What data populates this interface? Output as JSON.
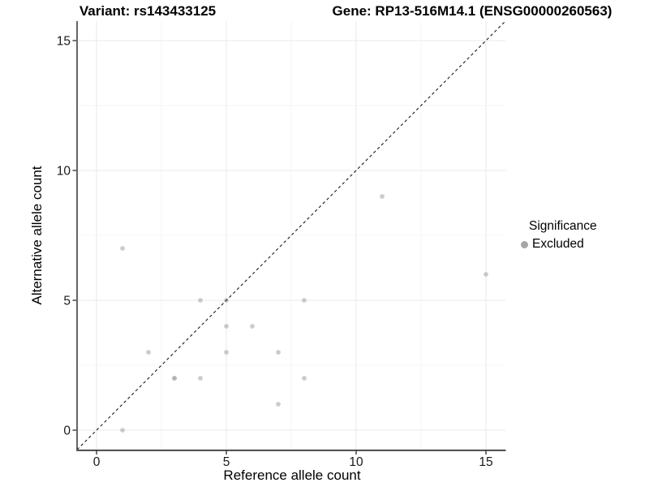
{
  "chart_data": {
    "type": "scatter",
    "title_left": "Variant: rs143433125",
    "title_right": "Gene: RP13-516M14.1 (ENSG00000260563)",
    "xlabel": "Reference allele count",
    "ylabel": "Alternative allele count",
    "x_ticks": [
      0,
      5,
      10,
      15
    ],
    "y_ticks": [
      0,
      5,
      10,
      15
    ],
    "x_minor_ticks": [
      2.5,
      7.5,
      12.5
    ],
    "y_minor_ticks": [
      2.5,
      7.5,
      12.5
    ],
    "xlim": [
      -0.75,
      15.75
    ],
    "ylim": [
      -0.75,
      15.75
    ],
    "grid": "major and minor, light gray on white",
    "identity_line": {
      "style": "dashed",
      "equation": "y = x",
      "color": "#1a1a1a"
    },
    "series": [
      {
        "name": "Excluded",
        "color": "#999999",
        "opacity": 0.5,
        "points": [
          [
            1,
            0
          ],
          [
            1,
            7
          ],
          [
            2,
            3
          ],
          [
            3,
            2
          ],
          [
            3,
            2
          ],
          [
            4,
            2
          ],
          [
            4,
            5
          ],
          [
            5,
            3
          ],
          [
            5,
            4
          ],
          [
            5,
            5
          ],
          [
            6,
            4
          ],
          [
            7,
            1
          ],
          [
            7,
            3
          ],
          [
            8,
            2
          ],
          [
            8,
            5
          ],
          [
            11,
            9
          ],
          [
            15,
            6
          ]
        ]
      }
    ],
    "legend": {
      "title": "Significance",
      "position": "right",
      "items": [
        {
          "label": "Excluded",
          "color": "#a6a6a6"
        }
      ]
    }
  },
  "colors": {
    "background": "#ffffff",
    "grid_major": "#e9e9e9",
    "grid_minor": "#f4f4f4",
    "axis_line": "#3f3f3f",
    "tick_text": "#1a1a1a",
    "point_fill": "#999999",
    "legend_dot": "#a6a6a6"
  }
}
